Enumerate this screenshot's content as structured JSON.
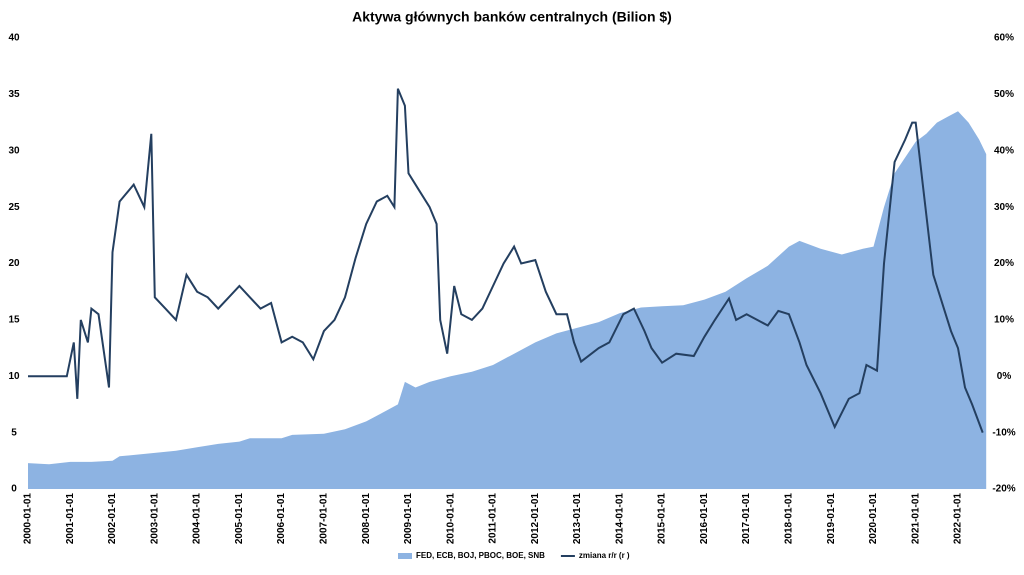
{
  "chart_data": {
    "type": "area-line",
    "title": "Aktywa głównych banków centralnych (Bilion $)",
    "xticks": [
      "2000-01-01",
      "2001-01-01",
      "2002-01-01",
      "2003-01-01",
      "2004-01-01",
      "2005-01-01",
      "2006-01-01",
      "2007-01-01",
      "2008-01-01",
      "2009-01-01",
      "2010-01-01",
      "2011-01-01",
      "2012-01-01",
      "2013-01-01",
      "2014-01-01",
      "2015-01-01",
      "2016-01-01",
      "2017-01-01",
      "2018-01-01",
      "2019-01-01",
      "2020-01-01",
      "2021-01-01",
      "2022-01-01"
    ],
    "xlim": [
      "2000-01-01",
      "2022-09-01"
    ],
    "ylim": [
      0,
      40
    ],
    "yticks": [
      0,
      5,
      10,
      15,
      20,
      25,
      30,
      35,
      40
    ],
    "y2lim": [
      -20,
      60
    ],
    "y2ticks": [
      {
        "value": -20,
        "label": "-20%"
      },
      {
        "value": -10,
        "label": "-10%"
      },
      {
        "value": 0,
        "label": "0%"
      },
      {
        "value": 10,
        "label": "10%"
      },
      {
        "value": 20,
        "label": "20%"
      },
      {
        "value": 30,
        "label": "30%"
      },
      {
        "value": 40,
        "label": "40%"
      },
      {
        "value": 50,
        "label": "50%"
      },
      {
        "value": 60,
        "label": "60%"
      }
    ],
    "legend": "bottom",
    "series": [
      {
        "name": "FED, ECB, BOJ, PBOC, BOE, SNB",
        "kind": "area",
        "color": "#8db3e2",
        "x": [
          "2000-01-01",
          "2000-07-01",
          "2001-01-01",
          "2001-07-01",
          "2002-01-01",
          "2002-03-01",
          "2003-01-01",
          "2003-07-01",
          "2004-01-01",
          "2004-07-01",
          "2005-01-01",
          "2005-04-01",
          "2006-01-01",
          "2006-04-01",
          "2007-01-01",
          "2007-07-01",
          "2008-01-01",
          "2008-07-01",
          "2008-10-01",
          "2008-12-01",
          "2009-03-01",
          "2009-07-01",
          "2010-01-01",
          "2010-07-01",
          "2011-01-01",
          "2011-07-01",
          "2012-01-01",
          "2012-07-01",
          "2013-01-01",
          "2013-07-01",
          "2014-01-01",
          "2014-07-01",
          "2015-01-01",
          "2015-07-01",
          "2016-01-01",
          "2016-07-01",
          "2017-01-01",
          "2017-07-01",
          "2018-01-01",
          "2018-04-01",
          "2018-10-01",
          "2019-04-01",
          "2019-10-01",
          "2020-01-01",
          "2020-04-01",
          "2020-07-01",
          "2021-01-01",
          "2021-04-01",
          "2021-07-01",
          "2021-10-01",
          "2022-01-01",
          "2022-04-01",
          "2022-07-01",
          "2022-09-01"
        ],
        "values": [
          2.3,
          2.2,
          2.4,
          2.4,
          2.5,
          2.9,
          3.2,
          3.4,
          3.7,
          4.0,
          4.2,
          4.5,
          4.5,
          4.8,
          4.9,
          5.3,
          6.0,
          7.0,
          7.5,
          9.5,
          9.0,
          9.5,
          10.0,
          10.4,
          11.0,
          12.0,
          13.0,
          13.8,
          14.3,
          14.8,
          15.6,
          16.1,
          16.2,
          16.3,
          16.8,
          17.5,
          18.7,
          19.8,
          21.5,
          22.0,
          21.3,
          20.8,
          21.3,
          21.5,
          25.0,
          28.0,
          30.8,
          31.5,
          32.5,
          33.0,
          33.5,
          32.5,
          31.0,
          29.7
        ]
      },
      {
        "name": "zmiana r/r (r )",
        "kind": "line",
        "axis": "y2",
        "color": "#243f60",
        "x": [
          "2000-01-01",
          "2000-12-01",
          "2001-02-01",
          "2001-03-01",
          "2001-04-01",
          "2001-06-01",
          "2001-07-01",
          "2001-09-01",
          "2001-12-01",
          "2002-01-01",
          "2002-03-01",
          "2002-07-01",
          "2002-10-01",
          "2002-12-01",
          "2003-01-01",
          "2003-04-01",
          "2003-07-01",
          "2003-10-01",
          "2004-01-01",
          "2004-04-01",
          "2004-07-01",
          "2004-10-01",
          "2005-01-01",
          "2005-04-01",
          "2005-07-01",
          "2005-10-01",
          "2006-01-01",
          "2006-04-01",
          "2006-07-01",
          "2006-10-01",
          "2007-01-01",
          "2007-04-01",
          "2007-07-01",
          "2007-10-01",
          "2008-01-01",
          "2008-04-01",
          "2008-07-01",
          "2008-09-01",
          "2008-10-01",
          "2008-12-01",
          "2009-01-01",
          "2009-04-01",
          "2009-07-01",
          "2009-09-01",
          "2009-10-01",
          "2009-12-01",
          "2010-02-01",
          "2010-04-01",
          "2010-07-01",
          "2010-10-01",
          "2011-01-01",
          "2011-04-01",
          "2011-07-01",
          "2011-09-01",
          "2012-01-01",
          "2012-04-01",
          "2012-07-01",
          "2012-10-01",
          "2012-12-01",
          "2013-02-01",
          "2013-07-01",
          "2013-10-01",
          "2014-02-01",
          "2014-05-01",
          "2014-08-01",
          "2014-10-01",
          "2015-01-01",
          "2015-05-01",
          "2015-10-01",
          "2016-01-01",
          "2016-04-01",
          "2016-08-01",
          "2016-10-01",
          "2017-01-01",
          "2017-04-01",
          "2017-07-01",
          "2017-10-01",
          "2018-01-01",
          "2018-04-01",
          "2018-06-01",
          "2018-10-01",
          "2019-02-01",
          "2019-06-01",
          "2019-09-01",
          "2019-11-01",
          "2020-02-01",
          "2020-04-01",
          "2020-07-01",
          "2020-10-01",
          "2020-12-01",
          "2021-01-01",
          "2021-03-01",
          "2021-06-01",
          "2021-09-01",
          "2021-11-01",
          "2022-01-01",
          "2022-03-01",
          "2022-05-01",
          "2022-08-01"
        ],
        "values": [
          0,
          0,
          6,
          -4,
          10,
          6,
          12,
          11,
          -2,
          22,
          31,
          34,
          30,
          43,
          14,
          12,
          10,
          18,
          15,
          14,
          12,
          14,
          16,
          14,
          12,
          13,
          6,
          7,
          6,
          3,
          8,
          10,
          14,
          21,
          27,
          31,
          32,
          30,
          51,
          48,
          36,
          33,
          30,
          27,
          10,
          4,
          16,
          11,
          10,
          12,
          16,
          20,
          23,
          20,
          20.6,
          15,
          11,
          11,
          6,
          2.6,
          5,
          6,
          11,
          12,
          8,
          5,
          2.4,
          4,
          3.6,
          7,
          10,
          13.8,
          10,
          11,
          10,
          9,
          11.6,
          11,
          6,
          2,
          -3,
          -9,
          -4,
          -3,
          2,
          1,
          20,
          38,
          42,
          45,
          45,
          34,
          18,
          12,
          8,
          5,
          -2,
          -5,
          -10
        ]
      }
    ]
  }
}
